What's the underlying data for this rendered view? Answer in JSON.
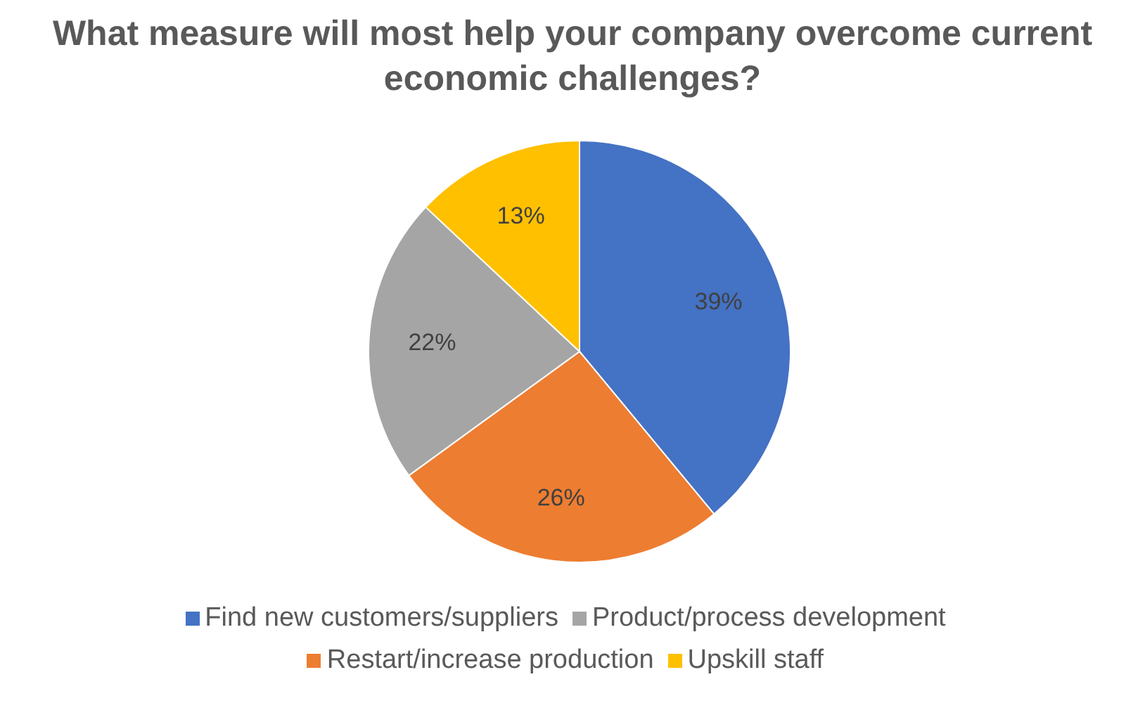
{
  "chart_data": {
    "type": "pie",
    "title": "What measure will most help your company overcome current economic challenges?",
    "categories": [
      "Find new customers/suppliers",
      "Restart/increase production",
      "Product/process development",
      "Upskill staff"
    ],
    "values": [
      39,
      26,
      22,
      13
    ],
    "colors": [
      "#4472c4",
      "#ed7d31",
      "#a5a5a5",
      "#ffc000"
    ],
    "value_labels": [
      "39%",
      "26%",
      "22%",
      "13%"
    ],
    "legend": "bottom"
  }
}
